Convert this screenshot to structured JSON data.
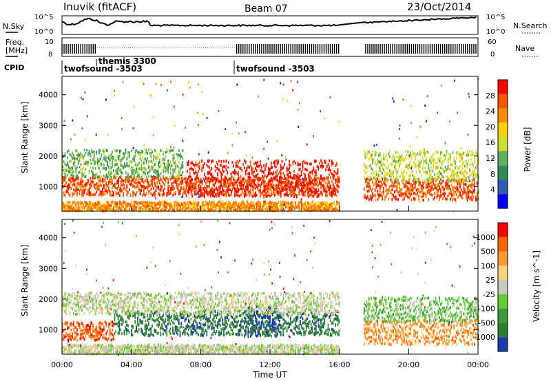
{
  "header": {
    "station": "Inuvik (fitACF)",
    "beam": "Beam 07",
    "date": "23/Oct/2014"
  },
  "params_panel": {
    "nsky_label": "N.Sky",
    "nsearch_label": "N.Search",
    "freq_label_line1": "Freq.",
    "freq_label_line2": "[MHz]",
    "nave_label": "Nave",
    "cpid_label": "CPID",
    "noise_ticks_left": [
      "10^5",
      "10^0"
    ],
    "noise_ticks_right": [
      "10^5",
      "10^0"
    ],
    "freq_ticks": [
      "10",
      "8"
    ],
    "nave_ticks": [
      "60",
      "0"
    ],
    "cpid_entries": [
      {
        "label": "twofsound -3503",
        "time_h": 0.05
      },
      {
        "label": "themis 3300",
        "time_h": 2.0
      },
      {
        "label": "twofsound -3503",
        "time_h": 10.0
      }
    ],
    "data_gap_hours": [
      16.0,
      17.4
    ]
  },
  "chart_data": [
    {
      "type": "heatmap",
      "name": "Power",
      "ylabel": "Slant Range [km]",
      "y_ticks": [
        1000,
        2000,
        3000,
        4000
      ],
      "ylim": [
        200,
        4600
      ],
      "xlim": [
        0,
        24
      ],
      "x_ticks": [
        "00:00",
        "04:00",
        "08:00",
        "12:00",
        "16:00",
        "20:00",
        "00:00"
      ],
      "colorbar": {
        "label": "Power [dB]",
        "ticks": [
          "4",
          "8",
          "12",
          "16",
          "20",
          "24",
          "28"
        ],
        "colors": [
          "#0000ff",
          "#2e5cb8",
          "#2e8b57",
          "#5fae5f",
          "#ccdd33",
          "#ffd000",
          "#ff8c00",
          "#ff5500",
          "#ff0000"
        ]
      },
      "bands": [
        {
          "t0": 0.0,
          "t1": 16.0,
          "r_center": 1050,
          "r_halfwidth": 300,
          "level": 7
        },
        {
          "t0": 7.2,
          "t1": 16.0,
          "r_center": 1300,
          "r_halfwidth": 600,
          "level": 8
        },
        {
          "t0": 0.0,
          "t1": 7.0,
          "r_center": 1800,
          "r_halfwidth": 450,
          "level": 3
        },
        {
          "t0": 0.0,
          "t1": 16.0,
          "r_center": 400,
          "r_halfwidth": 150,
          "level": 6
        },
        {
          "t0": 17.4,
          "t1": 24.0,
          "r_center": 950,
          "r_halfwidth": 350,
          "level": 7
        },
        {
          "t0": 17.4,
          "t1": 24.0,
          "r_center": 1700,
          "r_halfwidth": 500,
          "level": 4
        }
      ]
    },
    {
      "type": "heatmap",
      "name": "Velocity",
      "ylabel": "Slant Range [km]",
      "xlabel": "Time UT",
      "y_ticks": [
        1000,
        2000,
        3000,
        4000
      ],
      "ylim": [
        200,
        4600
      ],
      "xlim": [
        0,
        24
      ],
      "x_ticks": [
        "00:00",
        "04:00",
        "08:00",
        "12:00",
        "16:00",
        "20:00",
        "00:00"
      ],
      "colorbar": {
        "label": "Velocity [m s^-1]",
        "ticks": [
          "1000",
          "500",
          "100",
          "25",
          "-25",
          "-100",
          "-500",
          "-1000"
        ],
        "colors": [
          "#1a3ca8",
          "#2e7d32",
          "#3c9a3c",
          "#66cc33",
          "#c8c8c0",
          "#ffd27f",
          "#ff9933",
          "#ff6600",
          "#ff0000"
        ]
      },
      "bands": [
        {
          "t0": 0.0,
          "t1": 3.0,
          "r_center": 1000,
          "r_halfwidth": 300,
          "level": 7
        },
        {
          "t0": 3.0,
          "t1": 16.0,
          "r_center": 1250,
          "r_halfwidth": 400,
          "level": 1
        },
        {
          "t0": 10.5,
          "t1": 12.5,
          "r_center": 1300,
          "r_halfwidth": 500,
          "level": 0
        },
        {
          "t0": 0.0,
          "t1": 16.0,
          "r_center": 1900,
          "r_halfwidth": 350,
          "level": 4
        },
        {
          "t0": 0.0,
          "t1": 16.0,
          "r_center": 400,
          "r_halfwidth": 150,
          "level": 4
        },
        {
          "t0": 17.4,
          "t1": 24.0,
          "r_center": 950,
          "r_halfwidth": 400,
          "level": 6
        },
        {
          "t0": 17.4,
          "t1": 24.0,
          "r_center": 1700,
          "r_halfwidth": 400,
          "level": 3
        }
      ]
    }
  ]
}
